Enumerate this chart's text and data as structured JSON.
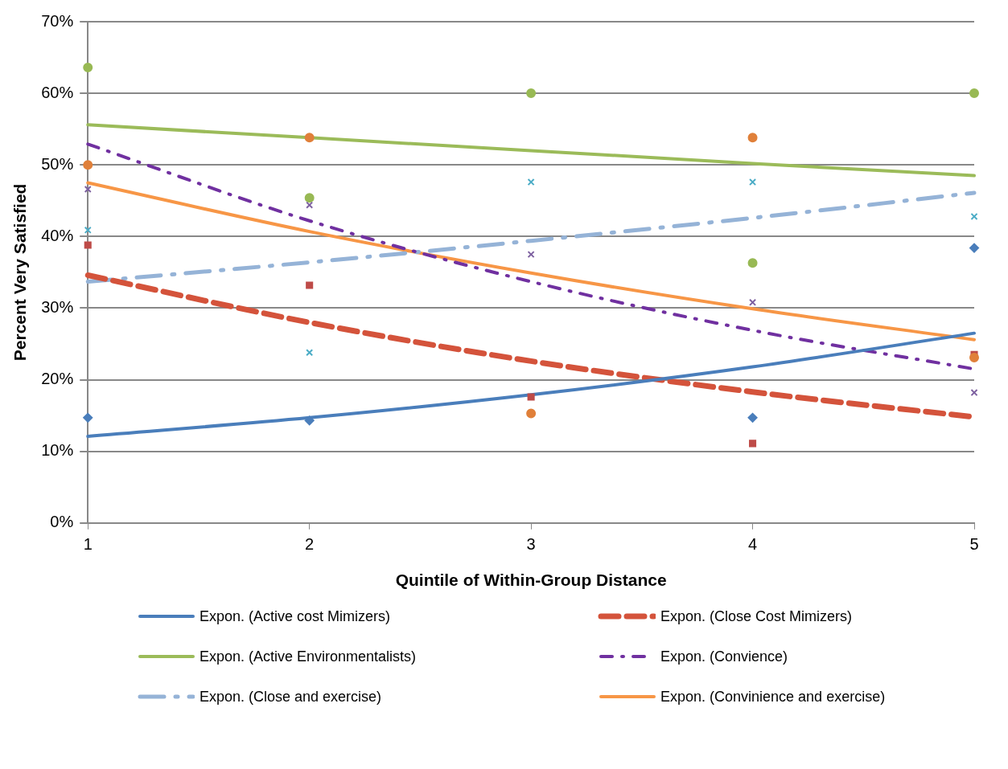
{
  "chart_data": {
    "type": "scatter",
    "xlabel": "Quintile of Within-Group Distance",
    "ylabel": "Percent Very Satisfied",
    "x": [
      1,
      2,
      3,
      4,
      5
    ],
    "xlim": [
      1,
      5
    ],
    "xticks": [
      1,
      2,
      3,
      4,
      5
    ],
    "ylim": [
      0,
      70
    ],
    "yticks": [
      {
        "value": 0,
        "label": "0%"
      },
      {
        "value": 10,
        "label": "10%"
      },
      {
        "value": 20,
        "label": "20%"
      },
      {
        "value": 30,
        "label": "30%"
      },
      {
        "value": 40,
        "label": "40%"
      },
      {
        "value": 50,
        "label": "50%"
      },
      {
        "value": 60,
        "label": "60%"
      },
      {
        "value": 70,
        "label": "70%"
      }
    ],
    "grid": "y",
    "legend": "bottom",
    "series": [
      {
        "marker": "diamond",
        "color": "#4a7ebb",
        "values": [
          14.7,
          14.3,
          null,
          14.7,
          38.4
        ]
      },
      {
        "marker": "square",
        "color": "#be4b48",
        "values": [
          38.8,
          33.2,
          17.6,
          11.1,
          23.5
        ]
      },
      {
        "marker": "circle",
        "color": "#98b954",
        "values": [
          63.6,
          45.4,
          60,
          36.3,
          60
        ]
      },
      {
        "marker": "cross",
        "color": "#7d60a0",
        "values": [
          46.6,
          44.4,
          37.5,
          30.8,
          18.2
        ]
      },
      {
        "marker": "cross",
        "color": "#4bacc6",
        "values": [
          40.9,
          23.8,
          47.6,
          47.6,
          42.8
        ]
      },
      {
        "marker": "circle",
        "color": "#e0803a",
        "values": [
          50,
          53.8,
          15.3,
          53.8,
          23.1
        ]
      },
      {
        "type": "line",
        "name": "Expon. (Active cost Mimizers)",
        "color": "#4a7ebb",
        "line_style": "solid",
        "values": [
          12.1,
          14.7,
          17.9,
          21.8,
          26.5
        ]
      },
      {
        "type": "line",
        "name": "Expon. (Close Cost Mimizers)",
        "color": "#d4533b",
        "line_style": "dashed",
        "values": [
          34.6,
          28.0,
          22.6,
          18.3,
          14.8
        ]
      },
      {
        "type": "line",
        "name": "Expon. (Active Environmentalists)",
        "color": "#9bbb59",
        "line_style": "solid",
        "values": [
          55.6,
          53.8,
          52.0,
          50.2,
          48.5
        ]
      },
      {
        "type": "line",
        "name": "Expon. (Convience)",
        "color": "#7030a0",
        "line_style": "dashdot",
        "values": [
          52.9,
          42.2,
          33.7,
          26.9,
          21.5
        ]
      },
      {
        "type": "line",
        "name": "Expon. (Close and exercise)",
        "color": "#95b3d7",
        "line_style": "longdashdot",
        "values": [
          33.7,
          36.4,
          39.4,
          42.6,
          46.1
        ]
      },
      {
        "type": "line",
        "name": "Expon. (Convinience and exercise)",
        "color": "#f79646",
        "line_style": "solid",
        "values": [
          47.5,
          40.7,
          34.9,
          29.9,
          25.6
        ]
      }
    ]
  }
}
